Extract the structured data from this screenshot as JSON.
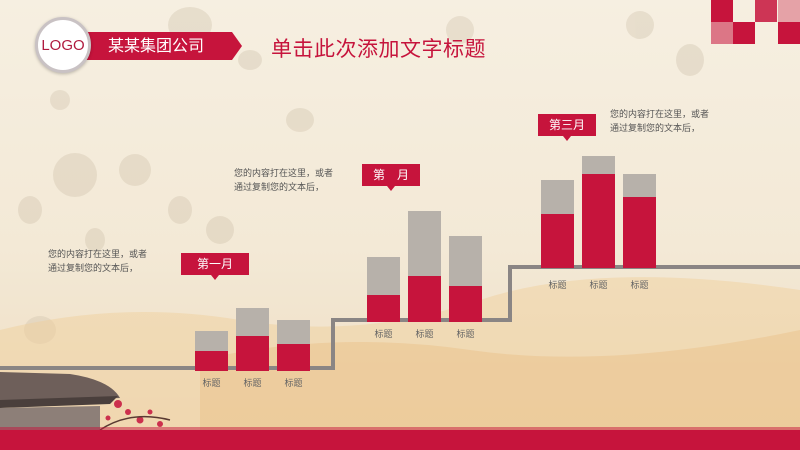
{
  "header": {
    "logo_text": "LOGO",
    "company_name": "某某集团公司",
    "page_title": "单击此次添加文字标题"
  },
  "colors": {
    "accent": "#c6143c",
    "bar_gray": "#b7b1aa",
    "step_line": "#8a8584"
  },
  "chart_data": {
    "type": "bar",
    "stacked": true,
    "groups": [
      {
        "label": "第一月",
        "note": [
          "您的内容打在这里，或者",
          "通过复制您的文本后，"
        ],
        "categories": [
          "标题",
          "标题",
          "标题"
        ],
        "series": [
          {
            "values": [
              20,
              35,
              27
            ]
          },
          {
            "values": [
              20,
              28,
              24
            ]
          }
        ]
      },
      {
        "label": "第　月",
        "note": [
          "您的内容打在这里，或者",
          "通过复制您的文本后，"
        ],
        "categories": [
          "标题",
          "标题",
          "标题"
        ],
        "series": [
          {
            "values": [
              27,
              46,
              36
            ]
          },
          {
            "values": [
              38,
              65,
              50
            ]
          }
        ]
      },
      {
        "label": "第三月",
        "note": [
          "您的内容打在这里，或者",
          "通过复制您的文本后，"
        ],
        "categories": [
          "标题",
          "标题",
          "标题"
        ],
        "series": [
          {
            "values": [
              54,
              94,
              71
            ]
          },
          {
            "values": [
              34,
              18,
              23
            ]
          }
        ]
      }
    ]
  }
}
